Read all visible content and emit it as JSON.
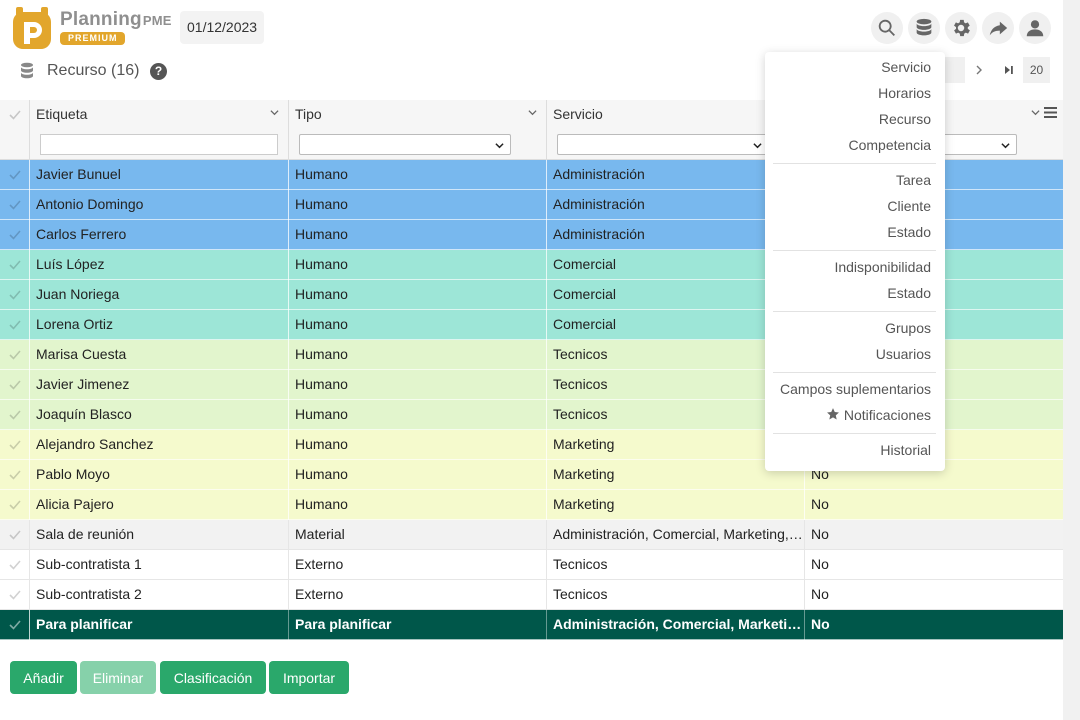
{
  "header": {
    "brand_name": "Planning",
    "brand_suffix": "PME",
    "brand_badge": "PREMIUM",
    "date": "01/12/2023",
    "icons": [
      "search-icon",
      "database-icon",
      "gear-icon",
      "share-icon",
      "user-icon"
    ]
  },
  "page": {
    "title": "Recurso (16)",
    "help": "?"
  },
  "pager": {
    "next": "›",
    "last": "⏭",
    "page_size": "20"
  },
  "table": {
    "columns": [
      "Etiqueta",
      "Tipo",
      "Servicio"
    ],
    "rows": [
      {
        "etiqueta": "Javier Bunuel",
        "tipo": "Humano",
        "servicio": "Administración",
        "extra": "",
        "color": "#78b8ee"
      },
      {
        "etiqueta": "Antonio Domingo",
        "tipo": "Humano",
        "servicio": "Administración",
        "extra": "",
        "color": "#78b8ee"
      },
      {
        "etiqueta": "Carlos Ferrero",
        "tipo": "Humano",
        "servicio": "Administración",
        "extra": "",
        "color": "#78b8ee"
      },
      {
        "etiqueta": "Luís López",
        "tipo": "Humano",
        "servicio": "Comercial",
        "extra": "",
        "color": "#9de6d7"
      },
      {
        "etiqueta": "Juan Noriega",
        "tipo": "Humano",
        "servicio": "Comercial",
        "extra": "",
        "color": "#9de6d7"
      },
      {
        "etiqueta": "Lorena Ortiz",
        "tipo": "Humano",
        "servicio": "Comercial",
        "extra": "",
        "color": "#9de6d7"
      },
      {
        "etiqueta": "Marisa Cuesta",
        "tipo": "Humano",
        "servicio": "Tecnicos",
        "extra": "",
        "color": "#e2f5cd"
      },
      {
        "etiqueta": "Javier Jimenez",
        "tipo": "Humano",
        "servicio": "Tecnicos",
        "extra": "",
        "color": "#e2f5cd"
      },
      {
        "etiqueta": "Joaquín Blasco",
        "tipo": "Humano",
        "servicio": "Tecnicos",
        "extra": "",
        "color": "#e2f5cd"
      },
      {
        "etiqueta": "Alejandro Sanchez",
        "tipo": "Humano",
        "servicio": "Marketing",
        "extra": "",
        "color": "#f5facd"
      },
      {
        "etiqueta": "Pablo Moyo",
        "tipo": "Humano",
        "servicio": "Marketing",
        "extra": "No",
        "color": "#f5facd"
      },
      {
        "etiqueta": "Alicia Pajero",
        "tipo": "Humano",
        "servicio": "Marketing",
        "extra": "No",
        "color": "#f5facd"
      },
      {
        "etiqueta": "Sala de reunión",
        "tipo": "Material",
        "servicio": "Administración, Comercial, Marketing, Tecnicos",
        "extra": "No",
        "color": "#f2f2f2"
      },
      {
        "etiqueta": "Sub-contratista 1",
        "tipo": "Externo",
        "servicio": "Tecnicos",
        "extra": "No",
        "color": "#ffffff"
      },
      {
        "etiqueta": "Sub-contratista 2",
        "tipo": "Externo",
        "servicio": "Tecnicos",
        "extra": "No",
        "color": "#ffffff"
      },
      {
        "etiqueta": "Para planificar",
        "tipo": "Para planificar",
        "servicio": "Administración, Comercial, Marketing, Tecnicos",
        "extra": "No",
        "color": "#00574a"
      }
    ]
  },
  "buttons": {
    "add": "Añadir",
    "delete": "Eliminar",
    "sort": "Clasificación",
    "import": "Importar"
  },
  "menu": {
    "items": [
      "Servicio",
      "Horarios",
      "Recurso",
      "Competencia",
      "Tarea",
      "Cliente",
      "Estado",
      "Indisponibilidad",
      "Estado",
      "Grupos",
      "Usuarios",
      "Campos suplementarios",
      "Notificaciones",
      "Historial"
    ]
  },
  "colors": {
    "accent": "#2aa86b",
    "accent_disabled": "#86d1aa",
    "dark_row": "#00574a",
    "logo": "#e2a62c"
  }
}
